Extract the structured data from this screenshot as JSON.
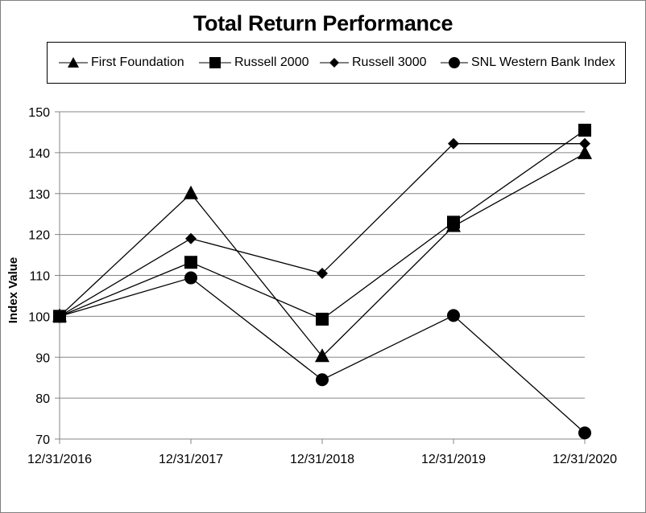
{
  "chart_data": {
    "type": "line",
    "title": "Total Return Performance",
    "xlabel": "",
    "ylabel": "Index Value",
    "categories": [
      "12/31/2016",
      "12/31/2017",
      "12/31/2018",
      "12/31/2019",
      "12/31/2020"
    ],
    "ylim": [
      70,
      150
    ],
    "yticks": [
      70,
      80,
      90,
      100,
      110,
      120,
      130,
      140,
      150
    ],
    "grid": true,
    "legend_position": "top",
    "series": [
      {
        "name": "First Foundation",
        "marker": "triangle",
        "values": [
          100,
          130,
          90.2,
          122,
          139.8
        ]
      },
      {
        "name": "Russell 2000",
        "marker": "square",
        "values": [
          100,
          113.2,
          99.3,
          123,
          145.5
        ]
      },
      {
        "name": "Russell 3000",
        "marker": "diamond",
        "values": [
          100,
          119,
          110.5,
          142.2,
          142.2
        ]
      },
      {
        "name": "SNL Western Bank Index",
        "marker": "circle",
        "values": [
          100,
          109.4,
          84.5,
          100.2,
          71.5
        ]
      }
    ],
    "colors": {
      "line": "#000000",
      "grid": "#868686",
      "frame": "#7f7f7f"
    }
  }
}
